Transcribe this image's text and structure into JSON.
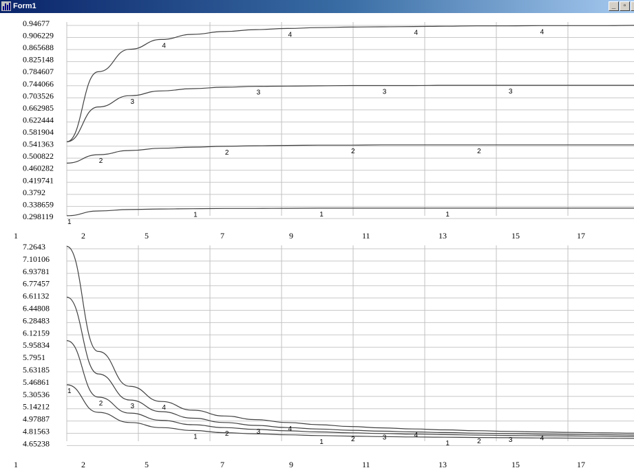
{
  "window": {
    "title": "Form1",
    "minimize_glyph": "_",
    "maximize_glyph": "▫",
    "close_glyph": "×",
    "app_icon": "chart-app-icon"
  },
  "chart_data": [
    {
      "type": "line",
      "title": "",
      "xlabel": "",
      "ylabel": "",
      "grid": true,
      "legend": "none",
      "xlim": [
        1,
        19
      ],
      "ylim": [
        0.277849,
        0.96704
      ],
      "y_ticks": [
        "0.94677",
        "0.906229",
        "0.865688",
        "0.825148",
        "0.784607",
        "0.744066",
        "0.703526",
        "0.662985",
        "0.622444",
        "0.581904",
        "0.541363",
        "0.500822",
        "0.460282",
        "0.419741",
        "0.3792",
        "0.338659",
        "0.298119"
      ],
      "x_ticks": [
        "1",
        "2",
        "5",
        "7",
        "9",
        "11",
        "13",
        "15",
        "17"
      ],
      "series": [
        {
          "name": "1",
          "x": [
            1,
            2,
            3,
            4,
            5,
            6,
            7,
            8,
            9,
            10,
            11,
            12,
            13,
            14,
            15,
            16,
            17,
            18,
            19
          ],
          "y": [
            0.278,
            0.295,
            0.3,
            0.302,
            0.303,
            0.304,
            0.304,
            0.3045,
            0.305,
            0.305,
            0.305,
            0.305,
            0.305,
            0.305,
            0.305,
            0.305,
            0.305,
            0.305,
            0.305
          ],
          "label_x": [
            1,
            5,
            9,
            13
          ]
        },
        {
          "name": "2",
          "x": [
            1,
            2,
            3,
            4,
            5,
            6,
            7,
            8,
            9,
            10,
            11,
            12,
            13,
            14,
            15,
            16,
            17,
            18,
            19
          ],
          "y": [
            0.465,
            0.495,
            0.51,
            0.518,
            0.522,
            0.525,
            0.527,
            0.528,
            0.529,
            0.529,
            0.53,
            0.53,
            0.53,
            0.53,
            0.53,
            0.53,
            0.53,
            0.53,
            0.53
          ],
          "label_x": [
            2,
            6,
            10,
            14
          ]
        },
        {
          "name": "3",
          "x": [
            1,
            2,
            3,
            4,
            5,
            6,
            7,
            8,
            9,
            10,
            11,
            12,
            13,
            14,
            15,
            16,
            17,
            18,
            19
          ],
          "y": [
            0.541,
            0.665,
            0.705,
            0.722,
            0.73,
            0.735,
            0.738,
            0.739,
            0.74,
            0.741,
            0.741,
            0.741,
            0.742,
            0.742,
            0.742,
            0.742,
            0.742,
            0.742,
            0.742
          ],
          "label_x": [
            3,
            7,
            11,
            15
          ]
        },
        {
          "name": "4",
          "x": [
            1,
            2,
            3,
            4,
            5,
            6,
            7,
            8,
            9,
            10,
            11,
            12,
            13,
            14,
            15,
            16,
            17,
            18,
            19
          ],
          "y": [
            0.541,
            0.79,
            0.87,
            0.905,
            0.923,
            0.933,
            0.94,
            0.944,
            0.947,
            0.949,
            0.95,
            0.951,
            0.952,
            0.953,
            0.953,
            0.954,
            0.954,
            0.954,
            0.955
          ],
          "label_x": [
            4,
            8,
            12,
            16
          ]
        }
      ]
    },
    {
      "type": "line",
      "title": "",
      "xlabel": "",
      "ylabel": "",
      "grid": true,
      "legend": "none",
      "xlim": [
        1,
        19
      ],
      "ylim": [
        4.562,
        7.2643
      ],
      "y_ticks": [
        "7.2643",
        "7.10106",
        "6.93781",
        "6.77457",
        "6.61132",
        "6.44808",
        "6.28483",
        "6.12159",
        "5.95834",
        "5.7951",
        "5.63185",
        "5.46861",
        "5.30536",
        "5.14212",
        "4.97887",
        "4.81563",
        "4.65238"
      ],
      "x_ticks": [
        "1",
        "2",
        "5",
        "7",
        "9",
        "11",
        "13",
        "15",
        "17"
      ],
      "series": [
        {
          "name": "1",
          "x": [
            1,
            2,
            3,
            4,
            5,
            6,
            7,
            8,
            9,
            10,
            11,
            12,
            13,
            14,
            15,
            16,
            17,
            18,
            19
          ],
          "y": [
            5.34,
            4.96,
            4.82,
            4.75,
            4.71,
            4.68,
            4.663,
            4.65,
            4.64,
            4.632,
            4.626,
            4.621,
            4.617,
            4.613,
            4.61,
            4.607,
            4.605,
            4.603,
            4.601
          ],
          "label_x": [
            1,
            5,
            9,
            13
          ]
        },
        {
          "name": "2",
          "x": [
            1,
            2,
            3,
            4,
            5,
            6,
            7,
            8,
            9,
            10,
            11,
            12,
            13,
            14,
            15,
            16,
            17,
            18,
            19
          ],
          "y": [
            5.95,
            5.17,
            4.95,
            4.85,
            4.79,
            4.75,
            4.725,
            4.705,
            4.69,
            4.678,
            4.668,
            4.66,
            4.653,
            4.647,
            4.642,
            4.638,
            4.634,
            4.631,
            4.628
          ],
          "label_x": [
            2,
            6,
            10,
            14
          ]
        },
        {
          "name": "3",
          "x": [
            1,
            2,
            3,
            4,
            5,
            6,
            7,
            8,
            9,
            10,
            11,
            12,
            13,
            14,
            15,
            16,
            17,
            18,
            19
          ],
          "y": [
            6.55,
            5.49,
            5.13,
            4.97,
            4.88,
            4.82,
            4.78,
            4.75,
            4.73,
            4.713,
            4.7,
            4.69,
            4.681,
            4.673,
            4.667,
            4.661,
            4.656,
            4.652,
            4.648
          ],
          "label_x": [
            3,
            7,
            11,
            15
          ]
        },
        {
          "name": "4",
          "x": [
            1,
            2,
            3,
            4,
            5,
            6,
            7,
            8,
            9,
            10,
            11,
            12,
            13,
            14,
            15,
            16,
            17,
            18,
            19
          ],
          "y": [
            7.25,
            5.8,
            5.32,
            5.11,
            4.99,
            4.91,
            4.86,
            4.82,
            4.79,
            4.765,
            4.746,
            4.731,
            4.718,
            4.707,
            4.698,
            4.69,
            4.683,
            4.677,
            4.672
          ],
          "label_x": [
            4,
            8,
            12,
            16
          ]
        }
      ]
    }
  ]
}
